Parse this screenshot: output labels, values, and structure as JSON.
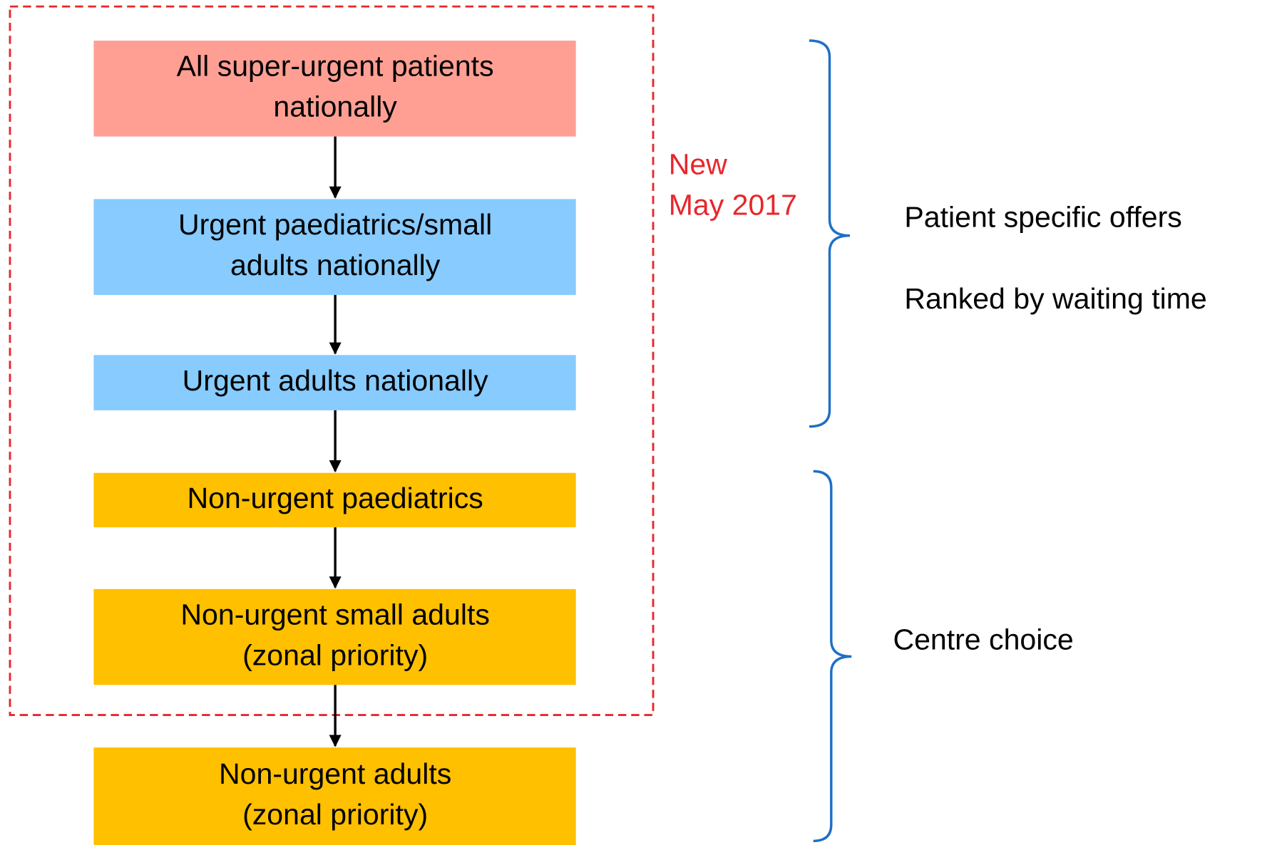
{
  "nodes": [
    {
      "lines": [
        "All super-urgent patients",
        "nationally"
      ]
    },
    {
      "lines": [
        "Urgent paediatrics/small",
        "adults nationally"
      ]
    },
    {
      "lines": [
        "Urgent adults nationally"
      ]
    },
    {
      "lines": [
        "Non-urgent paediatrics"
      ]
    },
    {
      "lines": [
        "Non-urgent small adults",
        "(zonal priority)"
      ]
    },
    {
      "lines": [
        "Non-urgent adults",
        "(zonal priority)"
      ]
    }
  ],
  "new_note": {
    "lines": [
      "New",
      "May 2017"
    ]
  },
  "groups": [
    {
      "lines": [
        "Patient specific offers",
        "Ranked by waiting time"
      ]
    },
    {
      "lines": [
        "Centre choice"
      ]
    }
  ]
}
